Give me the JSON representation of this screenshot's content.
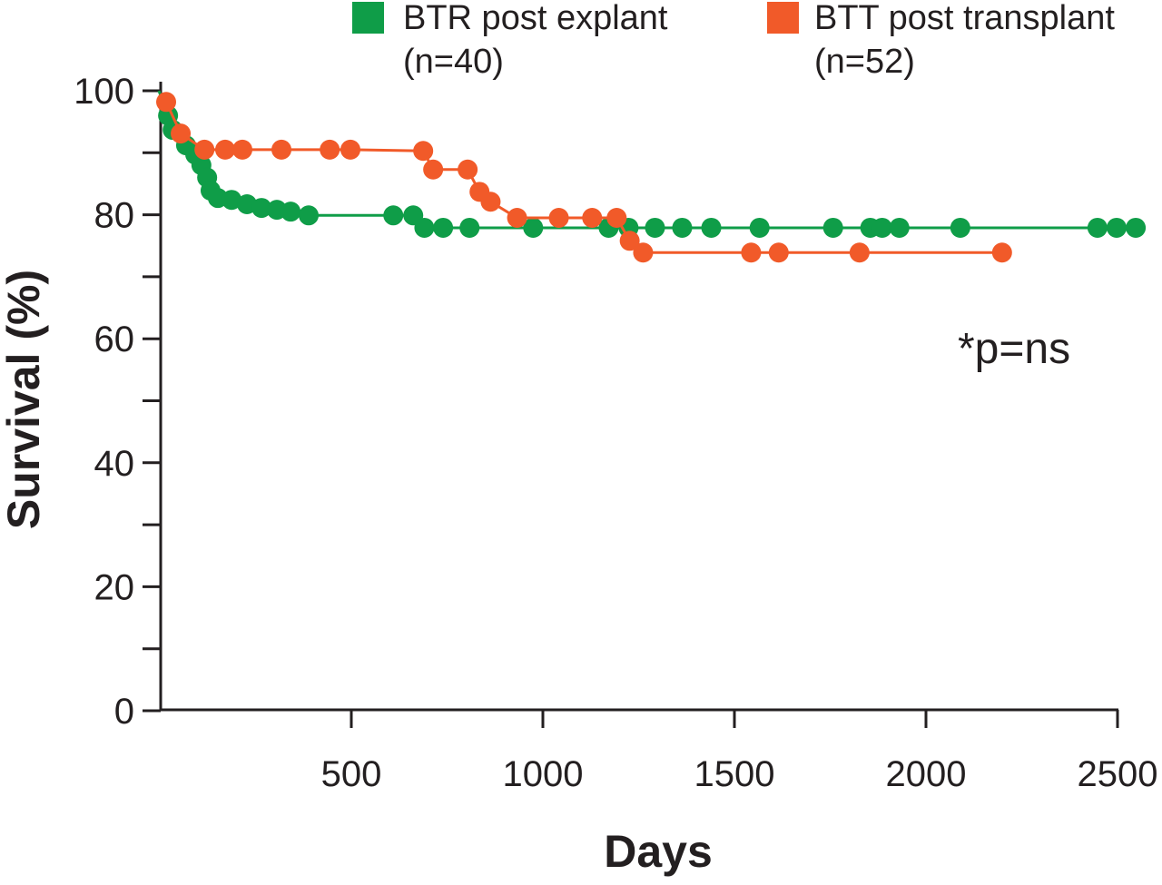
{
  "chart_data": {
    "type": "line",
    "title": "",
    "xlabel": "Days",
    "ylabel": "Survival (%)",
    "xlim": [
      0,
      2500
    ],
    "ylim": [
      0,
      100
    ],
    "x_ticks": [
      500,
      1000,
      1500,
      2000,
      2500
    ],
    "y_ticks": [
      0,
      20,
      40,
      60,
      80,
      100
    ],
    "annotation": "*p=ns",
    "legend_position": "top",
    "series": [
      {
        "name": "BTR post explant",
        "n_label": "(n=40)",
        "color": "#0f9d48",
        "points": [
          [
            0,
            100
          ],
          [
            24,
            96
          ],
          [
            36,
            93.7
          ],
          [
            71,
            91.2
          ],
          [
            95,
            89.7
          ],
          [
            111,
            88
          ],
          [
            126,
            86
          ],
          [
            135,
            83.9
          ],
          [
            154,
            82.7
          ],
          [
            190,
            82.4
          ],
          [
            230,
            81.7
          ],
          [
            268,
            81.1
          ],
          [
            308,
            80.8
          ],
          [
            344,
            80.5
          ],
          [
            391,
            79.9
          ],
          [
            612,
            79.9
          ],
          [
            664,
            79.9
          ],
          [
            693,
            77.9
          ],
          [
            742,
            77.9
          ],
          [
            811,
            77.9
          ],
          [
            977,
            77.9
          ],
          [
            1174,
            77.9
          ],
          [
            1226,
            77.9
          ],
          [
            1295,
            77.9
          ],
          [
            1366,
            77.9
          ],
          [
            1442,
            77.9
          ],
          [
            1568,
            77.9
          ],
          [
            1760,
            77.9
          ],
          [
            1857,
            77.9
          ],
          [
            1888,
            77.9
          ],
          [
            1933,
            77.9
          ],
          [
            2092,
            77.9
          ],
          [
            2450,
            77.9
          ],
          [
            2500,
            77.9
          ],
          [
            2550,
            77.9
          ]
        ]
      },
      {
        "name": "BTT post transplant",
        "n_label": "(n=52)",
        "color": "#f15a29",
        "points": [
          [
            19,
            98.2
          ],
          [
            57,
            93.1
          ],
          [
            119,
            90.5
          ],
          [
            173,
            90.5
          ],
          [
            218,
            90.5
          ],
          [
            320,
            90.5
          ],
          [
            446,
            90.5
          ],
          [
            500,
            90.5
          ],
          [
            690,
            90.3
          ],
          [
            716,
            87.3
          ],
          [
            806,
            87.3
          ],
          [
            837,
            83.7
          ],
          [
            866,
            82.1
          ],
          [
            935,
            79.5
          ],
          [
            1044,
            79.5
          ],
          [
            1131,
            79.5
          ],
          [
            1195,
            79.5
          ],
          [
            1229,
            75.8
          ],
          [
            1264,
            73.9
          ],
          [
            1546,
            73.9
          ],
          [
            1618,
            73.9
          ],
          [
            1829,
            73.9
          ],
          [
            2201,
            73.9
          ]
        ]
      }
    ]
  }
}
